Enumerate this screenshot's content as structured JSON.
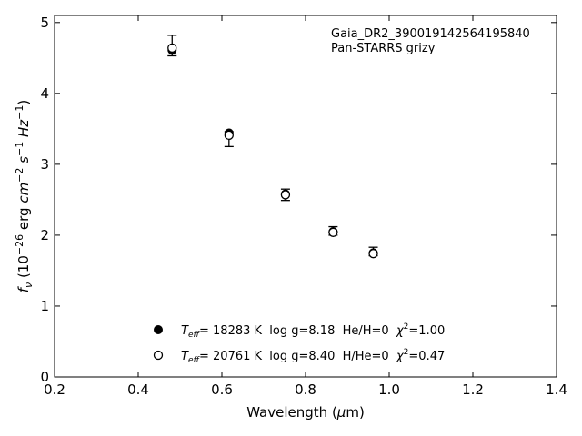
{
  "chart_data": {
    "type": "scatter",
    "xlabel_main": "Wavelength (",
    "xlabel_sym": "μ",
    "xlabel_tail": "m)",
    "xlim": [
      0.2,
      1.4
    ],
    "ylim": [
      0,
      5.1
    ],
    "xticks": [
      "0.2",
      "0.4",
      "0.6",
      "0.8",
      "1.0",
      "1.2",
      "1.4"
    ],
    "xtick_values": [
      0.2,
      0.4,
      0.6,
      0.8,
      1.0,
      1.2,
      1.4
    ],
    "yticks": [
      "0",
      "1",
      "2",
      "3",
      "4",
      "5"
    ],
    "ytick_values": [
      0,
      1,
      2,
      3,
      4,
      5
    ],
    "annotation_line1": "Gaia_DR2_390019142564195840",
    "annotation_line2": "Pan-STARRS grizy",
    "grid": false,
    "legend_position": "bottom-center",
    "observed": {
      "x": [
        0.481,
        0.617,
        0.752,
        0.866,
        0.962
      ],
      "y": [
        4.66,
        3.42,
        2.58,
        2.06,
        1.77
      ],
      "yerr_low": [
        0.13,
        0.17,
        0.09,
        0.06,
        0.06
      ],
      "yerr_high": [
        0.16,
        0.04,
        0.07,
        0.06,
        0.06
      ]
    },
    "series": [
      {
        "marker": "filled",
        "x": [
          0.481,
          0.617,
          0.752,
          0.866,
          0.962
        ],
        "y": [
          4.61,
          3.44,
          2.58,
          2.05,
          1.75
        ],
        "legend": {
          "T": "T",
          "eff": "eff",
          "a": "= 18283 K  log g=8.18  He/H=0  ",
          "chi": "χ",
          "sup": "2",
          "b": "=1.00"
        }
      },
      {
        "marker": "open",
        "x": [
          0.481,
          0.617,
          0.752,
          0.866,
          0.962
        ],
        "y": [
          4.64,
          3.41,
          2.57,
          2.04,
          1.74
        ],
        "legend": {
          "T": "T",
          "eff": "eff",
          "a": "= 20761 K  log g=8.40  H/He=0  ",
          "chi": "χ",
          "sup": "2",
          "b": "=0.47"
        }
      }
    ]
  }
}
